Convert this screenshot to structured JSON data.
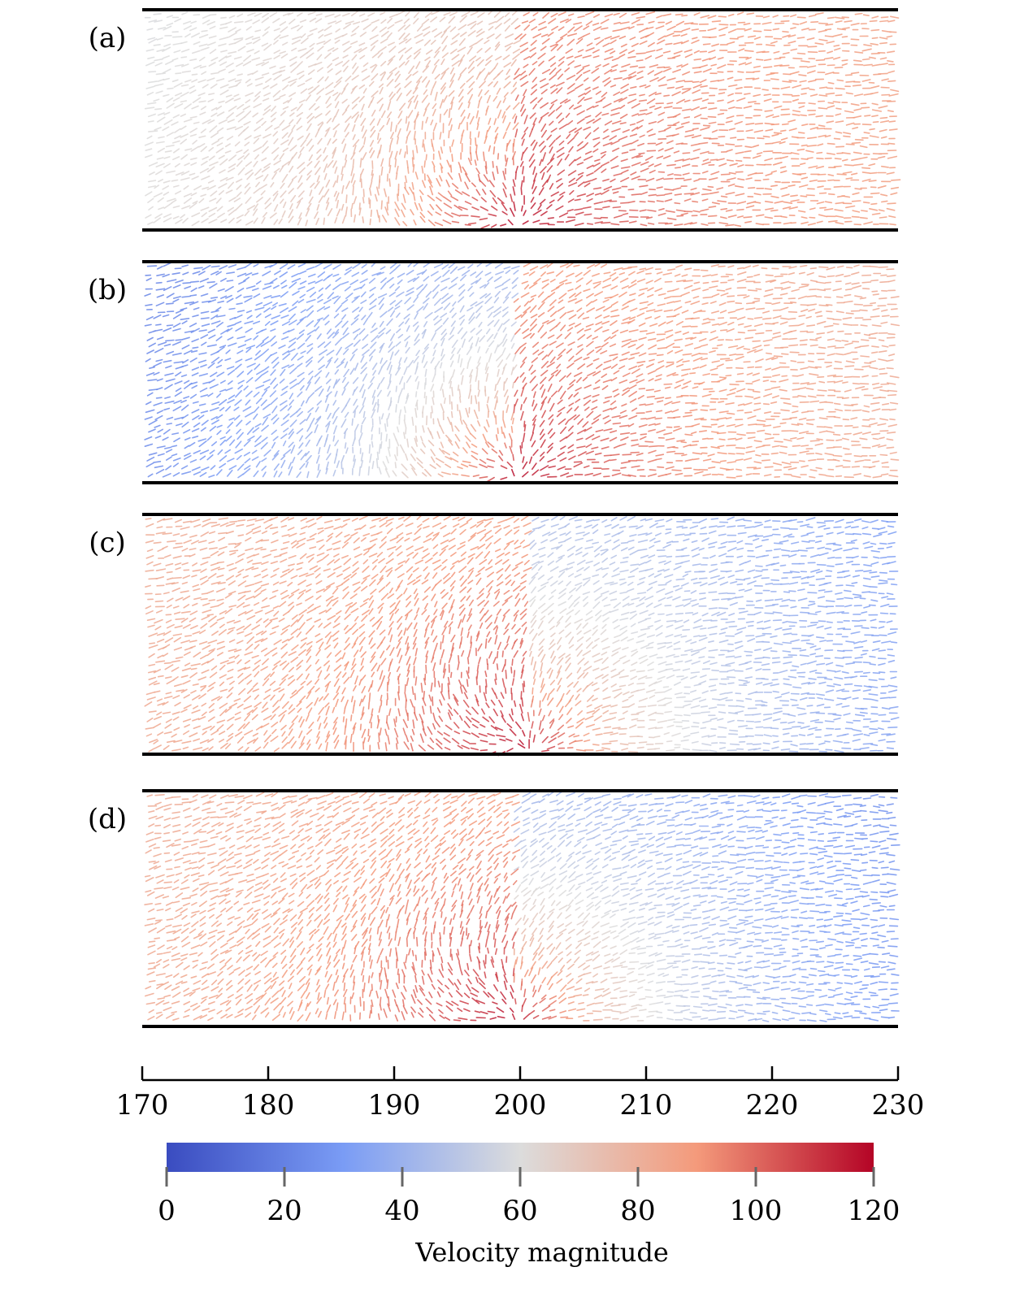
{
  "chart_data": {
    "type": "vector-field",
    "panels": [
      {
        "label": "(a)",
        "low_color": "#8a96a6",
        "high_color": "#c06a55",
        "background": {
          "upstream": 55,
          "downstream": 85
        },
        "jet": {
          "x": 199.5,
          "peak": 120,
          "reach": 7.5
        }
      },
      {
        "label": "(b)",
        "low_color": "#2f55b5",
        "high_color": "#c06a55",
        "background": {
          "upstream": 15,
          "downstream": 80
        },
        "jet": {
          "x": 199.5,
          "peak": 120,
          "reach": 7.5
        }
      },
      {
        "label": "(c)",
        "low_color": "#4d6ec0",
        "high_color": "#b8776a",
        "background": {
          "upstream": 80,
          "downstream": 25
        },
        "jet": {
          "x": 200.5,
          "peak": 120,
          "reach": 7.5
        }
      },
      {
        "label": "(d)",
        "low_color": "#3452b0",
        "high_color": "#b8776a",
        "background": {
          "upstream": 80,
          "downstream": 20
        },
        "jet": {
          "x": 199.5,
          "peak": 120,
          "reach": 7.5
        }
      }
    ],
    "x_axis": {
      "min": 170,
      "max": 230,
      "ticks": [
        170,
        180,
        190,
        200,
        210,
        220,
        230
      ],
      "tick_labels": [
        "170",
        "180",
        "190",
        "200",
        "210",
        "220",
        "230"
      ]
    },
    "colorbar": {
      "label": "Velocity magnitude",
      "min": 0,
      "max": 120,
      "ticks": [
        0,
        20,
        40,
        60,
        80,
        100,
        120
      ],
      "tick_labels": [
        "0",
        "20",
        "40",
        "60",
        "80",
        "100",
        "120"
      ],
      "colors": [
        "#3a4cc0",
        "#7a9cf5",
        "#dcdcdc",
        "#f49a7b",
        "#b40426"
      ]
    }
  }
}
